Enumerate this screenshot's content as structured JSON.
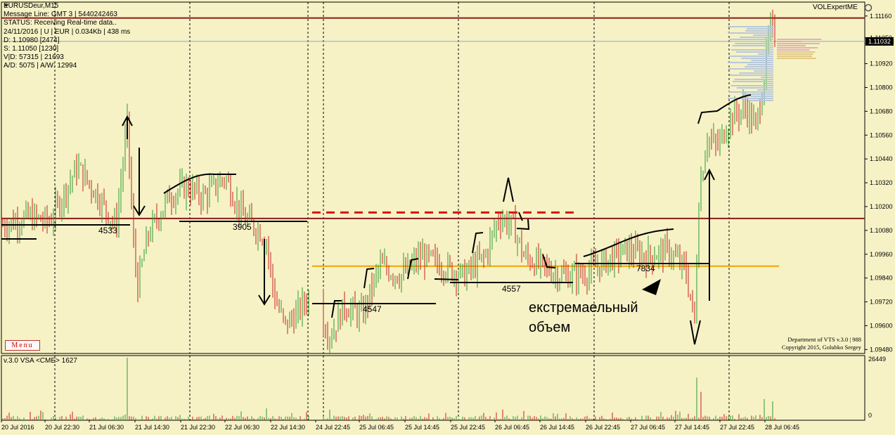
{
  "header": {
    "symbol_title": "EURUSDeur,M15",
    "message_line": "Message Line: GMT 3 | 5440242463",
    "status": "STATUS:  Receiving Real-time data..",
    "session": "24/11/2016 | U | EUR | 0.034Kb | 438 ms",
    "d_line": "D: 1.10980  [2474]",
    "s_line": "S: 1.11050  [1230]",
    "vd_line": "V|D: 57315 | 21693",
    "ad_line": "A/D: 5075 | A/W: 12994",
    "brand": "VOLExpertME",
    "menu_label": "Menu"
  },
  "credits": {
    "line1": "Department of VTS  v.3.0 | 988",
    "line2": "Copyright 2015, Golubko Sergey"
  },
  "sub_window": {
    "label": "v.3.0 VSA  <CME>  1627",
    "ymax_label": "26449",
    "ymin_label": "0"
  },
  "colors": {
    "background": "#f6f2c6",
    "bull_candle": "#2e9a2e",
    "bear_candle": "#c81e1e",
    "resistance_line": "#8b1a1a",
    "support_line": "#f0a400",
    "current_price_line": "#88aacc",
    "price_tag_bg": "#000000"
  },
  "annotations": {
    "volume_numbers": [
      "4533",
      "3905",
      "4547",
      "4557",
      "7834"
    ],
    "comment_line1": "екстремаельный",
    "comment_line2": "объем"
  },
  "chart_data": {
    "type": "candlestick",
    "title": "EURUSDeur,M15",
    "x_tick_labels": [
      "20 Jul 2016",
      "20 Jul 22:30",
      "21 Jul 06:30",
      "21 Jul 14:30",
      "21 Jul 22:30",
      "22 Jul 06:30",
      "22 Jul 14:30",
      "24 Jul 22:45",
      "25 Jul 06:45",
      "25 Jul 14:45",
      "25 Jul 22:45",
      "26 Jul 06:45",
      "26 Jul 14:45",
      "26 Jul 22:45",
      "27 Jul 06:45",
      "27 Jul 14:45",
      "27 Jul 22:45",
      "28 Jul 06:45"
    ],
    "y_tick_labels": [
      "1.11160",
      "1.11050",
      "1.10920",
      "1.10800",
      "1.10680",
      "1.10560",
      "1.10440",
      "1.10320",
      "1.10200",
      "1.10080",
      "1.09960",
      "1.09840",
      "1.09720",
      "1.09600",
      "1.09480"
    ],
    "ylim": [
      1.0946,
      1.1123
    ],
    "current_price": 1.11032,
    "current_price_label": "1.11032",
    "horizontal_levels": [
      {
        "name": "resistance",
        "price": 1.1115,
        "style": "solid"
      },
      {
        "name": "range-high",
        "price": 1.1014,
        "style": "solid"
      },
      {
        "name": "range-high-dashed",
        "price": 1.1017,
        "style": "dashed"
      },
      {
        "name": "support",
        "price": 1.099,
        "style": "solid"
      }
    ],
    "price_path": [
      [
        0,
        1.101
      ],
      [
        40,
        1.1015
      ],
      [
        70,
        1.1012
      ],
      [
        110,
        1.104
      ],
      [
        140,
        1.1025
      ],
      [
        165,
        1.101
      ],
      [
        181,
        1.1062
      ],
      [
        190,
        1.1
      ],
      [
        196,
        1.098
      ],
      [
        210,
        1.1005
      ],
      [
        240,
        1.1025
      ],
      [
        265,
        1.103
      ],
      [
        290,
        1.1025
      ],
      [
        320,
        1.1035
      ],
      [
        345,
        1.1015
      ],
      [
        378,
        1.1005
      ],
      [
        390,
        1.0975
      ],
      [
        405,
        1.096
      ],
      [
        420,
        1.0965
      ],
      [
        440,
        1.0975
      ],
      [
        470,
        1.0955
      ],
      [
        490,
        1.097
      ],
      [
        515,
        1.0965
      ],
      [
        540,
        1.099
      ],
      [
        570,
        1.0985
      ],
      [
        600,
        1.0995
      ],
      [
        630,
        1.099
      ],
      [
        660,
        1.0985
      ],
      [
        690,
        1.0995
      ],
      [
        710,
        1.1015
      ],
      [
        730,
        1.101
      ],
      [
        745,
        1.0995
      ],
      [
        770,
        1.099
      ],
      [
        800,
        1.0985
      ],
      [
        830,
        1.0986
      ],
      [
        860,
        1.0992
      ],
      [
        890,
        1.0998
      ],
      [
        920,
        1.0995
      ],
      [
        950,
        1.0998
      ],
      [
        975,
        1.0988
      ],
      [
        988,
        1.0962
      ],
      [
        994,
        1.1025
      ],
      [
        1005,
        1.1055
      ],
      [
        1020,
        1.105
      ],
      [
        1040,
        1.1065
      ],
      [
        1060,
        1.107
      ],
      [
        1075,
        1.106
      ],
      [
        1085,
        1.108
      ],
      [
        1095,
        1.111
      ],
      [
        1103,
        1.1105
      ]
    ],
    "volume_spikes": [
      [
        181,
        26449
      ],
      [
        380,
        5000
      ],
      [
        714,
        4500
      ],
      [
        990,
        18000
      ],
      [
        998,
        12000
      ],
      [
        1088,
        9000
      ],
      [
        1100,
        8000
      ]
    ]
  }
}
